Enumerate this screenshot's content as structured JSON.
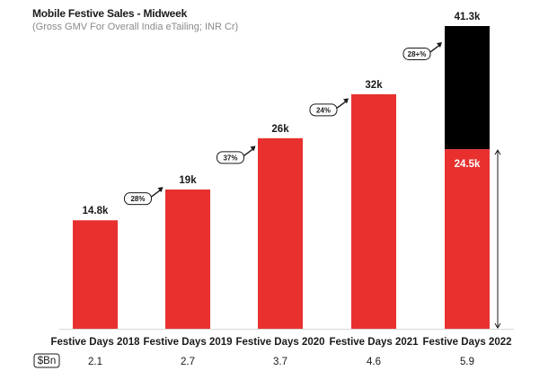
{
  "chart_data": {
    "type": "bar",
    "title": "Mobile Festive Sales - Midweek",
    "subtitle": "(Gross GMV For Overall India eTailing; INR Cr)",
    "categories": [
      "Festive Days 2018",
      "Festive Days 2019",
      "Festive Days 2020",
      "Festive Days 2021",
      "Festive Days 2022"
    ],
    "values": [
      14.8,
      19,
      26,
      32,
      41.3
    ],
    "value_labels": [
      "14.8k",
      "19k",
      "26k",
      "32k",
      "41.3k"
    ],
    "stacked_segment": {
      "category_index": 4,
      "lower_value": 24.5,
      "lower_label": "24.5k",
      "lower_color": "#e8312f",
      "upper_color": "#000000"
    },
    "growth_labels": [
      "28%",
      "37%",
      "24%",
      "28+%"
    ],
    "bn_label": "$Bn",
    "bn_values": [
      "2.1",
      "2.7",
      "3.7",
      "4.6",
      "5.9"
    ],
    "ylim": [
      0,
      41.3
    ],
    "bar_color": "#e8312f",
    "grid": false
  }
}
